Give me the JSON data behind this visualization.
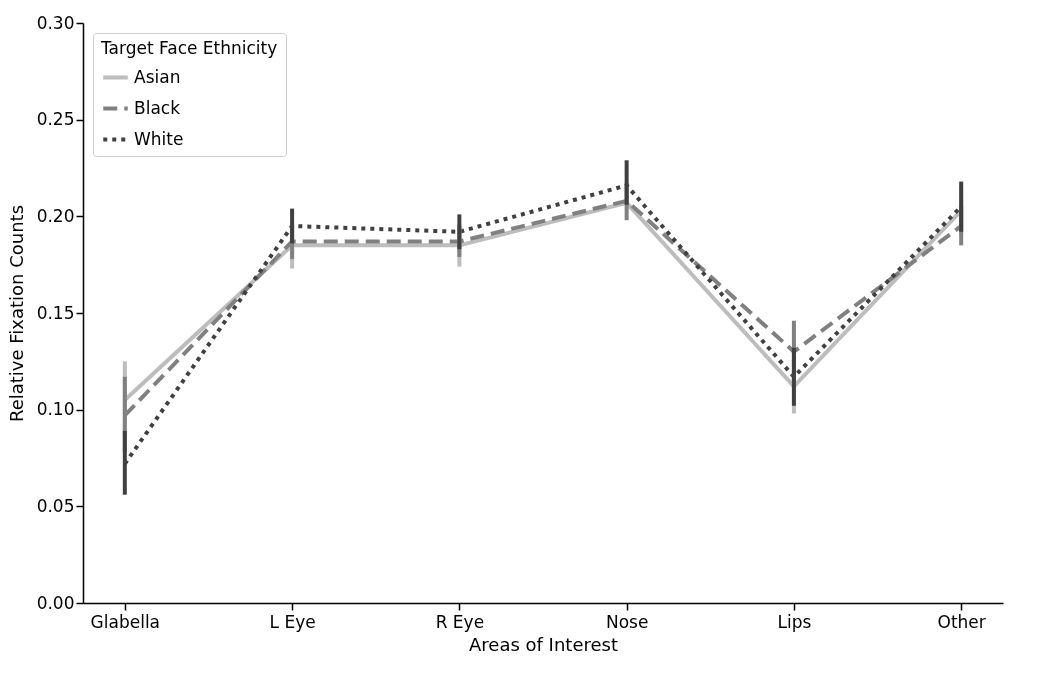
{
  "chart_data": {
    "type": "line",
    "xlabel": "Areas of Interest",
    "ylabel": "Relative Fixation Counts",
    "legend_title": "Target Face Ethnicity",
    "legend": "top left",
    "grid": false,
    "marker": "none",
    "categories": [
      "Glabella",
      "L Eye",
      "R Eye",
      "Nose",
      "Lips",
      "Other"
    ],
    "ylim": [
      0,
      0.3
    ],
    "yticks": [
      {
        "value": 0,
        "label": "0.00"
      },
      {
        "value": 0.05,
        "label": "0.05"
      },
      {
        "value": 0.1,
        "label": "0.10"
      },
      {
        "value": 0.15,
        "label": "0.15"
      },
      {
        "value": 0.2,
        "label": "0.20"
      },
      {
        "value": 0.25,
        "label": "0.25"
      },
      {
        "value": 0.3,
        "label": "0.30"
      }
    ],
    "series": [
      {
        "name": "Asian",
        "color": "#bdbdbd",
        "line_style": "solid",
        "values": [
          0.105,
          0.185,
          0.185,
          0.207,
          0.112,
          0.203
        ],
        "errors": [
          [
            0.086,
            0.125
          ],
          [
            0.173,
            0.197
          ],
          [
            0.174,
            0.196
          ],
          null,
          [
            0.098,
            0.126
          ],
          [
            0.19,
            0.216
          ]
        ]
      },
      {
        "name": "Black",
        "color": "#808080",
        "line_style": "dashed",
        "values": [
          0.097,
          0.187,
          0.187,
          0.208,
          0.13,
          0.195
        ],
        "errors": [
          [
            0.078,
            0.117
          ],
          [
            0.178,
            0.196
          ],
          [
            0.179,
            0.195
          ],
          [
            0.198,
            0.217
          ],
          [
            0.114,
            0.146
          ],
          [
            0.185,
            0.205
          ]
        ]
      },
      {
        "name": "White",
        "color": "#404040",
        "line_style": "dotted",
        "values": [
          0.072,
          0.195,
          0.192,
          0.216,
          0.117,
          0.205
        ],
        "errors": [
          [
            0.056,
            0.089
          ],
          [
            0.186,
            0.204
          ],
          [
            0.183,
            0.201
          ],
          [
            0.206,
            0.229
          ],
          [
            0.102,
            0.132
          ],
          [
            0.192,
            0.218
          ]
        ]
      }
    ]
  }
}
